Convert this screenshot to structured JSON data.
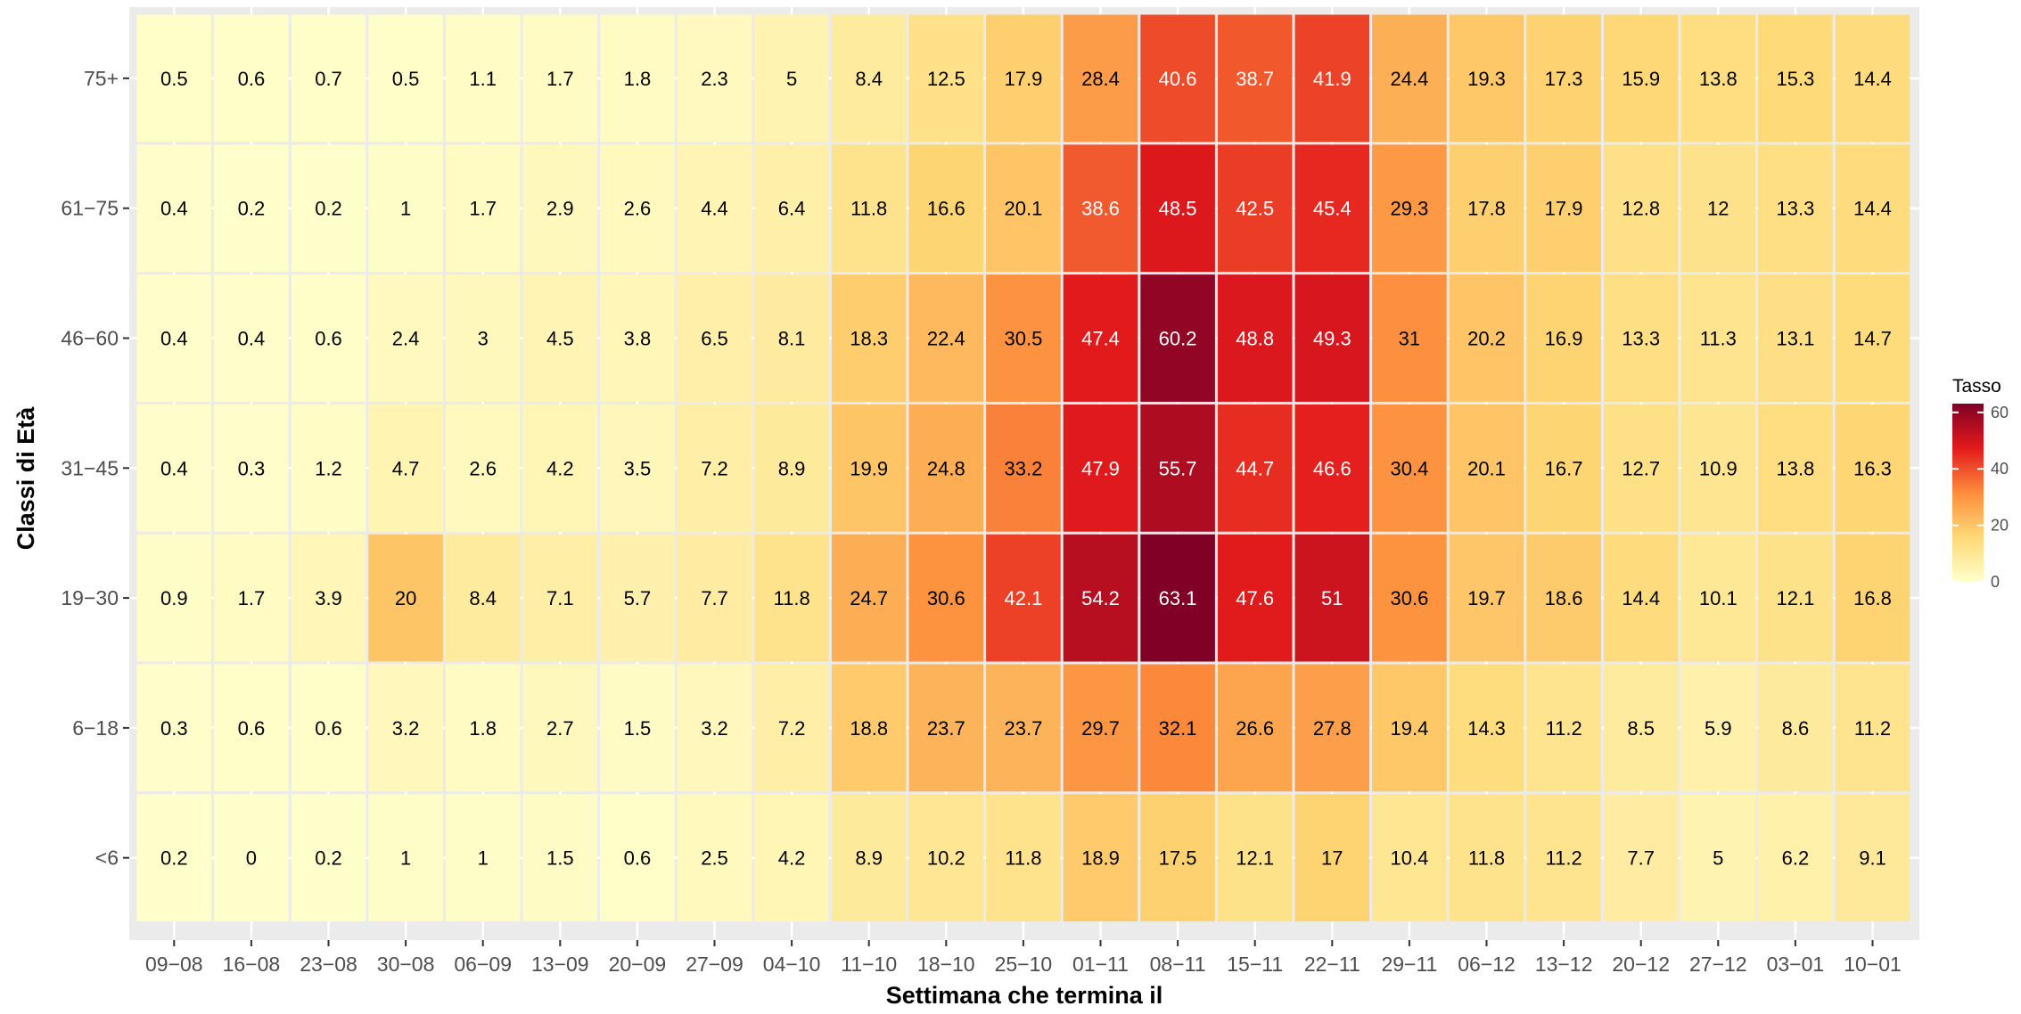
{
  "chart_data": {
    "type": "heatmap",
    "title": "",
    "xlabel": "Settimana che termina il",
    "ylabel": "Classi di Età",
    "x_categories": [
      "09−08",
      "16−08",
      "23−08",
      "30−08",
      "06−09",
      "13−09",
      "20−09",
      "27−09",
      "04−10",
      "11−10",
      "18−10",
      "25−10",
      "01−11",
      "08−11",
      "15−11",
      "22−11",
      "29−11",
      "06−12",
      "13−12",
      "20−12",
      "27−12",
      "03−01",
      "10−01"
    ],
    "y_categories": [
      "75+",
      "61−75",
      "46−60",
      "31−45",
      "19−30",
      "6−18",
      "<6"
    ],
    "values": [
      [
        "0.5",
        "0.6",
        "0.7",
        "0.5",
        "1.1",
        "1.7",
        "1.8",
        "2.3",
        "5",
        "8.4",
        "12.5",
        "17.9",
        "28.4",
        "40.6",
        "38.7",
        "41.9",
        "24.4",
        "19.3",
        "17.3",
        "15.9",
        "13.8",
        "15.3",
        "14.4"
      ],
      [
        "0.4",
        "0.2",
        "0.2",
        "1",
        "1.7",
        "2.9",
        "2.6",
        "4.4",
        "6.4",
        "11.8",
        "16.6",
        "20.1",
        "38.6",
        "48.5",
        "42.5",
        "45.4",
        "29.3",
        "17.8",
        "17.9",
        "12.8",
        "12",
        "13.3",
        "14.4"
      ],
      [
        "0.4",
        "0.4",
        "0.6",
        "2.4",
        "3",
        "4.5",
        "3.8",
        "6.5",
        "8.1",
        "18.3",
        "22.4",
        "30.5",
        "47.4",
        "60.2",
        "48.8",
        "49.3",
        "31",
        "20.2",
        "16.9",
        "13.3",
        "11.3",
        "13.1",
        "14.7"
      ],
      [
        "0.4",
        "0.3",
        "1.2",
        "4.7",
        "2.6",
        "4.2",
        "3.5",
        "7.2",
        "8.9",
        "19.9",
        "24.8",
        "33.2",
        "47.9",
        "55.7",
        "44.7",
        "46.6",
        "30.4",
        "20.1",
        "16.7",
        "12.7",
        "10.9",
        "13.8",
        "16.3"
      ],
      [
        "0.9",
        "1.7",
        "3.9",
        "20",
        "8.4",
        "7.1",
        "5.7",
        "7.7",
        "11.8",
        "24.7",
        "30.6",
        "42.1",
        "54.2",
        "63.1",
        "47.6",
        "51",
        "30.6",
        "19.7",
        "18.6",
        "14.4",
        "10.1",
        "12.1",
        "16.8"
      ],
      [
        "0.3",
        "0.6",
        "0.6",
        "3.2",
        "1.8",
        "2.7",
        "1.5",
        "3.2",
        "7.2",
        "18.8",
        "23.7",
        "23.7",
        "29.7",
        "32.1",
        "26.6",
        "27.8",
        "19.4",
        "14.3",
        "11.2",
        "8.5",
        "5.9",
        "8.6",
        "11.2"
      ],
      [
        "0.2",
        "0",
        "0.2",
        "1",
        "1",
        "1.5",
        "0.6",
        "2.5",
        "4.2",
        "8.9",
        "10.2",
        "11.8",
        "18.9",
        "17.5",
        "12.1",
        "17",
        "10.4",
        "11.8",
        "11.2",
        "7.7",
        "5",
        "6.2",
        "9.1"
      ]
    ],
    "legend": {
      "title": "Tasso",
      "ticks": [
        "0",
        "20",
        "40",
        "60"
      ],
      "range": [
        0,
        63.1
      ],
      "position": "right",
      "colors": [
        "#ffffcc",
        "#fed976",
        "#fd8d3c",
        "#e31a1c",
        "#800026"
      ]
    },
    "grid": true,
    "panel_background": "#ebebeb"
  }
}
